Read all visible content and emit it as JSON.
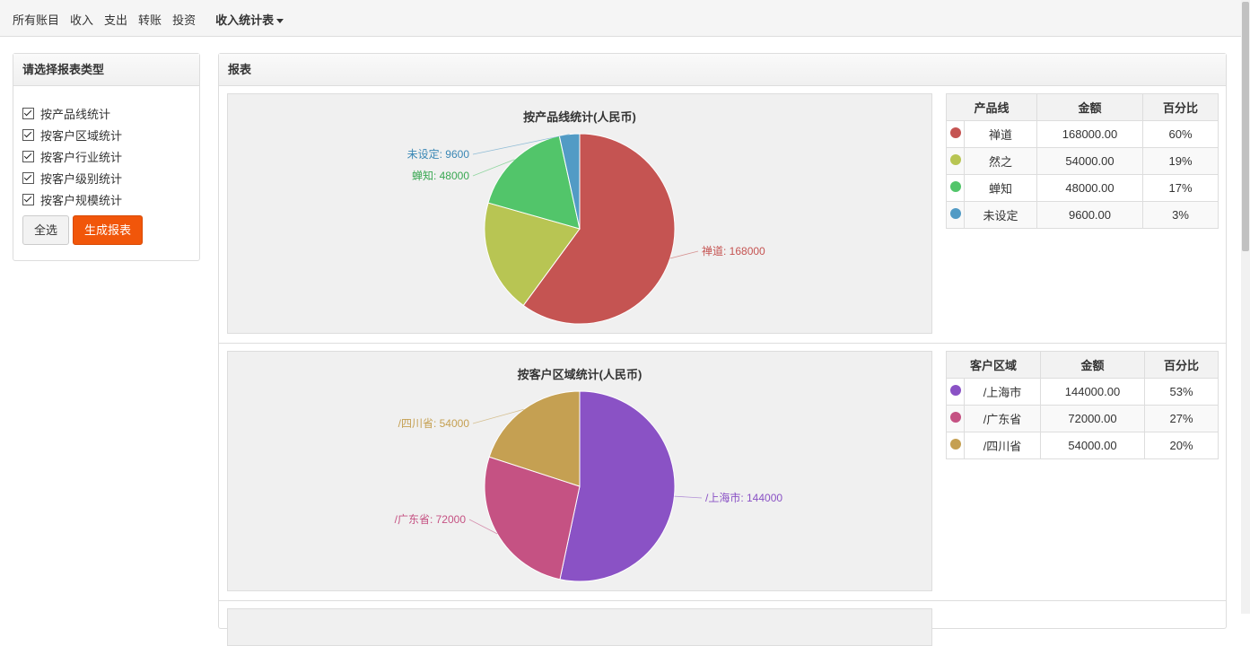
{
  "nav": {
    "items": [
      "所有账目",
      "收入",
      "支出",
      "转账",
      "投资"
    ],
    "active": "收入统计表"
  },
  "sidebar": {
    "title": "请选择报表类型",
    "options": [
      "按产品线统计",
      "按客户区域统计",
      "按客户行业统计",
      "按客户级别统计",
      "按客户规模统计"
    ],
    "select_all": "全选",
    "generate": "生成报表"
  },
  "report": {
    "title": "报表"
  },
  "chart_data": [
    {
      "type": "pie",
      "title": "按产品线统计(人民币)",
      "labels": [
        "禅道",
        "然之",
        "蝉知",
        "未设定"
      ],
      "values": [
        168000,
        54000,
        48000,
        9600
      ],
      "value_labels": [
        "禅道: 168000",
        "然之: 54000",
        "蝉知: 48000",
        "未设定: 9600"
      ],
      "colors": [
        "#c55452",
        "#b8c553",
        "#52c56a",
        "#529bc5"
      ],
      "table": {
        "headers": [
          "产品线",
          "金额",
          "百分比"
        ],
        "rows": [
          {
            "name": "禅道",
            "amount": "168000.00",
            "percent": "60%"
          },
          {
            "name": "然之",
            "amount": "54000.00",
            "percent": "19%"
          },
          {
            "name": "蝉知",
            "amount": "48000.00",
            "percent": "17%"
          },
          {
            "name": "未设定",
            "amount": "9600.00",
            "percent": "3%"
          }
        ]
      }
    },
    {
      "type": "pie",
      "title": "按客户区域统计(人民币)",
      "labels": [
        "/上海市",
        "/广东省",
        "/四川省"
      ],
      "values": [
        144000,
        72000,
        54000
      ],
      "value_labels": [
        "/上海市: 144000",
        "/广东省: 72000",
        "/四川省: 54000"
      ],
      "colors": [
        "#8a52c5",
        "#c55283",
        "#c5a052"
      ],
      "table": {
        "headers": [
          "客户区域",
          "金额",
          "百分比"
        ],
        "rows": [
          {
            "name": "/上海市",
            "amount": "144000.00",
            "percent": "53%"
          },
          {
            "name": "/广东省",
            "amount": "72000.00",
            "percent": "27%"
          },
          {
            "name": "/四川省",
            "amount": "54000.00",
            "percent": "20%"
          }
        ]
      }
    }
  ]
}
